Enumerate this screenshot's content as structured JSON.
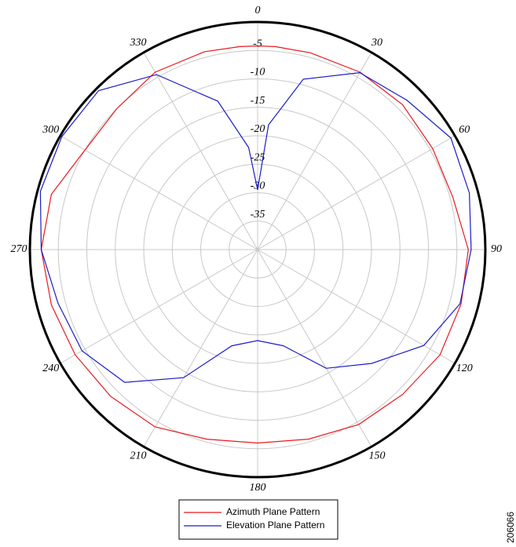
{
  "chart_data": {
    "type": "polar",
    "theta": [
      0,
      5,
      15,
      30,
      45,
      60,
      75,
      90,
      105,
      120,
      135,
      150,
      165,
      180,
      195,
      210,
      225,
      240,
      255,
      270,
      285,
      300,
      315,
      330,
      345,
      355
    ],
    "series": [
      {
        "name": "Azimuth Plane Pattern",
        "color": "#e8191f",
        "values": [
          -4.2,
          -4.2,
          -4.2,
          -4,
          -4,
          -4.5,
          -4.5,
          -3,
          -3,
          -3,
          -4,
          -4.5,
          -5.5,
          -6,
          -5.5,
          -4,
          -3.5,
          -3,
          -2.5,
          -2,
          -2.5,
          -5,
          -5,
          -4,
          -4,
          -4.2
        ]
      },
      {
        "name": "Elevation Plane Pattern",
        "color": "#1c1cc8",
        "values": [
          -29.5,
          -18,
          -9,
          -4.1,
          -2.9,
          -0.8,
          -1.5,
          -2.5,
          -3.2,
          -6.3,
          -11.7,
          -15.9,
          -22.5,
          -24,
          -22.5,
          -14,
          -7,
          -4.4,
          -3.7,
          -2,
          -0.5,
          -0.3,
          -0.5,
          -4.5,
          -13,
          -22
        ]
      }
    ],
    "rlim": [
      -40,
      0
    ],
    "rticks": [
      -35,
      -30,
      -25,
      -20,
      -15,
      -10,
      -5
    ],
    "thetaticks": [
      0,
      30,
      60,
      90,
      120,
      150,
      180,
      210,
      240,
      270,
      300,
      330
    ],
    "figure_id": "206066"
  }
}
